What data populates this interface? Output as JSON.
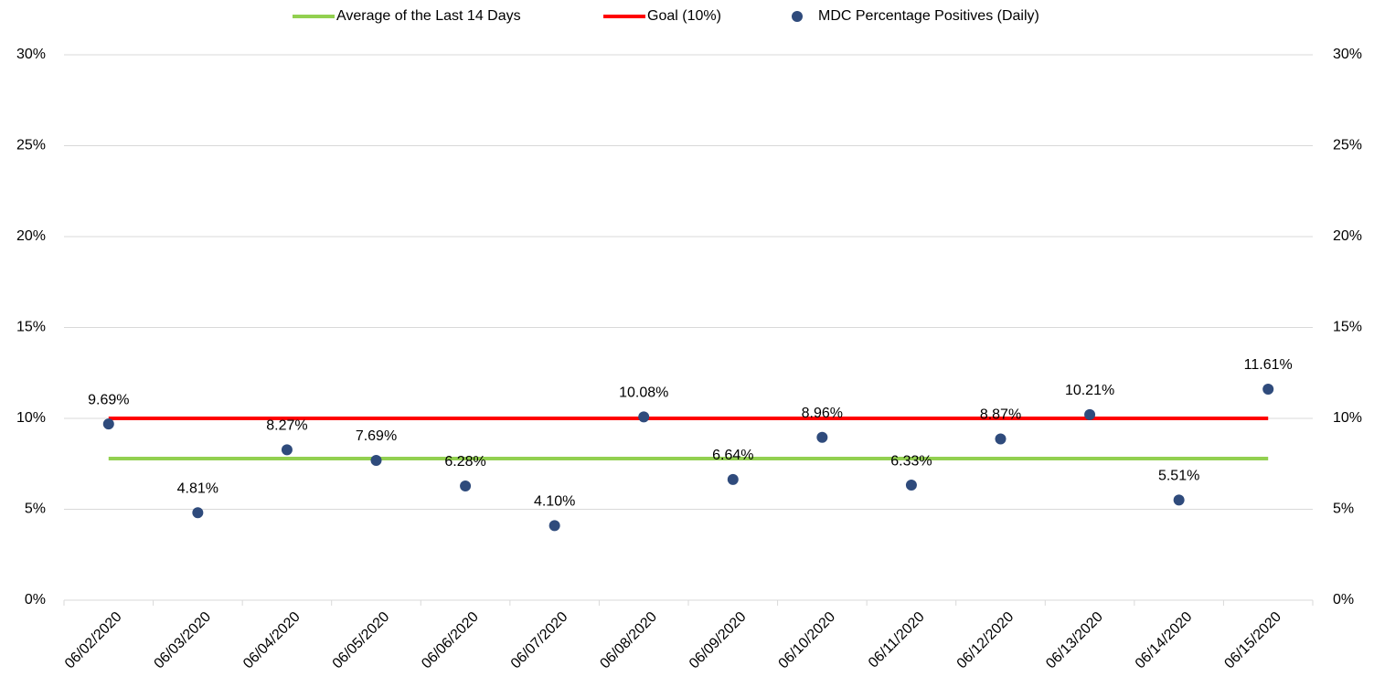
{
  "chart_data": {
    "type": "line",
    "categories": [
      "06/02/2020",
      "06/03/2020",
      "06/04/2020",
      "06/05/2020",
      "06/06/2020",
      "06/07/2020",
      "06/08/2020",
      "06/09/2020",
      "06/10/2020",
      "06/11/2020",
      "06/12/2020",
      "06/13/2020",
      "06/14/2020",
      "06/15/2020"
    ],
    "series": [
      {
        "name": "Average of the Last 14 Days",
        "color": "#92d050",
        "type": "line",
        "values": [
          7.79,
          7.79,
          7.79,
          7.79,
          7.79,
          7.79,
          7.79,
          7.79,
          7.79,
          7.79,
          7.79,
          7.79,
          7.79,
          7.79
        ]
      },
      {
        "name": "Goal (10%)",
        "color": "#ff0000",
        "type": "line",
        "axis": "y2",
        "values": [
          10,
          10,
          10,
          10,
          10,
          10,
          10,
          10,
          10,
          10,
          10,
          10,
          10,
          10
        ]
      },
      {
        "name": "MDC Percentage Positives (Daily)",
        "color": "#2f4b7c",
        "type": "scatter",
        "values": [
          9.69,
          4.81,
          8.27,
          7.69,
          6.28,
          4.1,
          10.08,
          6.64,
          8.96,
          6.33,
          8.87,
          10.21,
          5.51,
          11.61
        ],
        "value_labels": [
          "9.69%",
          "4.81%",
          "8.27%",
          "7.69%",
          "6.28%",
          "4.10%",
          "10.08%",
          "6.64%",
          "8.96%",
          "6.33%",
          "8.87%",
          "10.21%",
          "5.51%",
          "11.61%"
        ]
      }
    ],
    "ylim": [
      0,
      30
    ],
    "yticks": [
      {
        "value": 0,
        "label": "0%"
      },
      {
        "value": 5,
        "label": "5%"
      },
      {
        "value": 10,
        "label": "10%"
      },
      {
        "value": 15,
        "label": "15%"
      },
      {
        "value": 20,
        "label": "20%"
      },
      {
        "value": 25,
        "label": "25%"
      },
      {
        "value": 30,
        "label": "30%"
      }
    ],
    "y2lim": [
      0,
      30
    ],
    "y2ticks": [
      {
        "value": 0,
        "label": "0%"
      },
      {
        "value": 5,
        "label": "5%"
      },
      {
        "value": 10,
        "label": "10%"
      },
      {
        "value": 15,
        "label": "15%"
      },
      {
        "value": 20,
        "label": "20%"
      },
      {
        "value": 25,
        "label": "25%"
      },
      {
        "value": 30,
        "label": "30%"
      }
    ],
    "grid": true,
    "legend": "top"
  }
}
